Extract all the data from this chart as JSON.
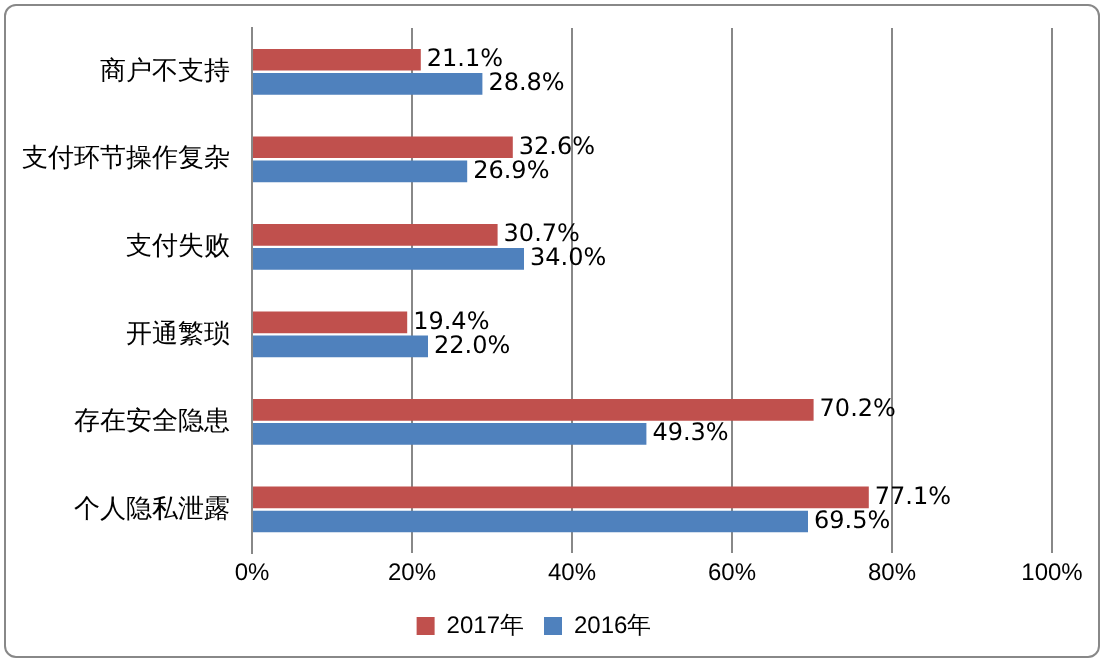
{
  "chart_data": {
    "type": "bar",
    "orientation": "horizontal",
    "categories": [
      "商户不支持",
      "支付环节操作复杂",
      "支付失败",
      "开通繁琐",
      "存在安全隐患",
      "个人隐私泄露"
    ],
    "series": [
      {
        "name": "2017年",
        "color": "#c0504d",
        "values": [
          21.1,
          32.6,
          30.7,
          19.4,
          70.2,
          77.1
        ],
        "value_labels": [
          "21.1%",
          "32.6%",
          "30.7%",
          "19.4%",
          "70.2%",
          "77.1%"
        ]
      },
      {
        "name": "2016年",
        "color": "#4f81bd",
        "values": [
          28.8,
          26.9,
          34.0,
          22.0,
          49.3,
          69.5
        ],
        "value_labels": [
          "28.8%",
          "26.9%",
          "34.0%",
          "22.0%",
          "49.3%",
          "69.5%"
        ]
      }
    ],
    "xlim": [
      0,
      100
    ],
    "xticks": [
      {
        "value": 0,
        "label": "0%"
      },
      {
        "value": 20,
        "label": "20%"
      },
      {
        "value": 40,
        "label": "40%"
      },
      {
        "value": 60,
        "label": "60%"
      },
      {
        "value": 80,
        "label": "80%"
      },
      {
        "value": 100,
        "label": "100%"
      }
    ],
    "grid": "x",
    "legend": "bottom"
  }
}
